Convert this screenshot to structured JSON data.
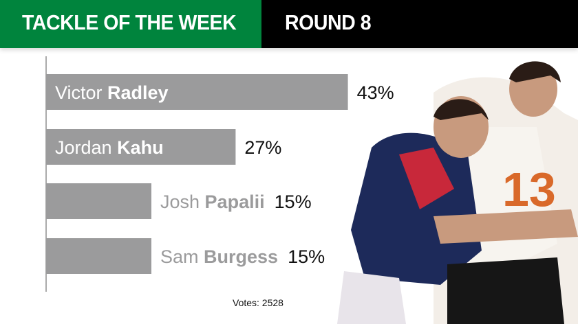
{
  "header": {
    "title": "TACKLE OF THE WEEK",
    "round": "ROUND 8"
  },
  "chart_data": {
    "type": "bar",
    "orientation": "horizontal",
    "categories": [
      {
        "first": "Victor",
        "last": "Radley"
      },
      {
        "first": "Jordan",
        "last": "Kahu"
      },
      {
        "first": "Josh",
        "last": "Papalii"
      },
      {
        "first": "Sam",
        "last": "Burgess"
      }
    ],
    "values": [
      43,
      27,
      15,
      15
    ],
    "value_labels": [
      "43%",
      "27%",
      "15%",
      "15%"
    ],
    "bar_color": "#9b9b9c",
    "grid": false
  },
  "footer": {
    "votes": "Votes: 2528"
  },
  "colors": {
    "header_green": "#00843d",
    "header_black": "#000000"
  }
}
